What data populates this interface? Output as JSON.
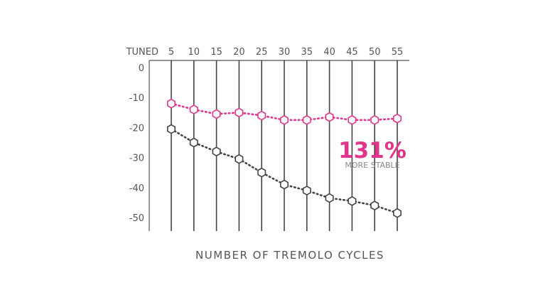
{
  "chart_data": {
    "type": "line",
    "x_header": "TUNED",
    "x": [
      5,
      10,
      15,
      20,
      25,
      30,
      35,
      40,
      45,
      50,
      55
    ],
    "y_ticks": [
      0,
      -10,
      -20,
      -30,
      -40,
      -50
    ],
    "ylim": [
      -52,
      0
    ],
    "xlabel": "NUMBER OF TREMOLO CYCLES",
    "series": [
      {
        "color": "#e0358a",
        "values": [
          -12,
          -14,
          -15.5,
          -15,
          -16,
          -17.5,
          -17.5,
          -16.5,
          -17.5,
          -17.5,
          -17
        ]
      },
      {
        "color": "#444444",
        "values": [
          -20.5,
          -25,
          -28,
          -30.5,
          -35,
          -39,
          -41,
          -43.5,
          -44.5,
          -46,
          -48.5
        ]
      }
    ],
    "annotation": {
      "value": "131%",
      "text": "MORE STABLE",
      "color": "#e0358a"
    },
    "grid": true
  }
}
